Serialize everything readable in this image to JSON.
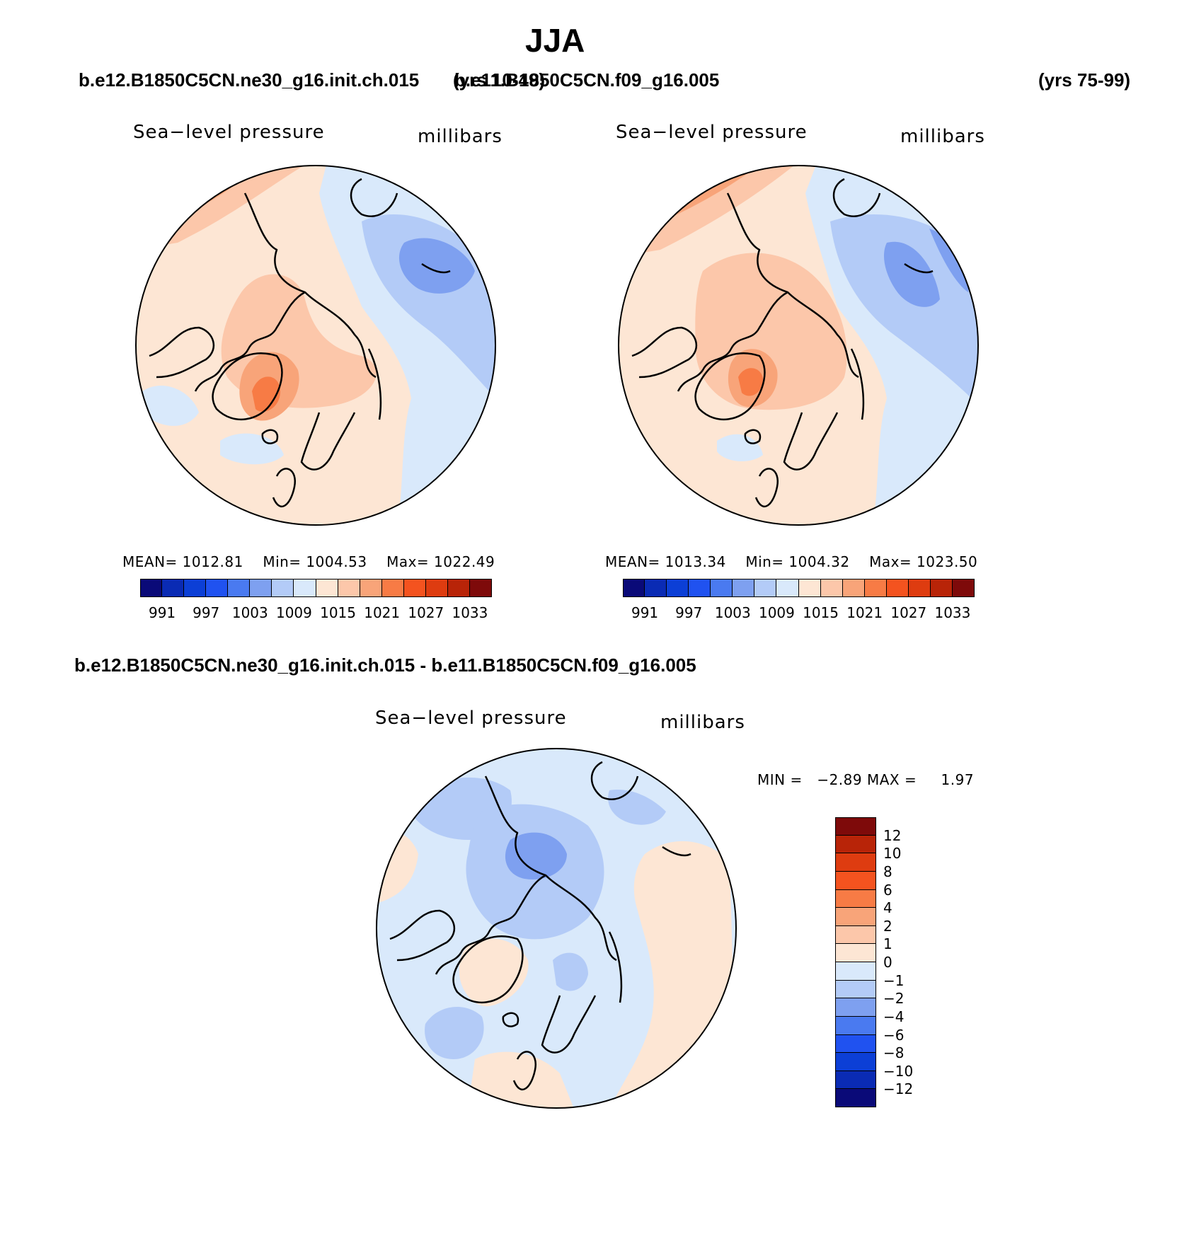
{
  "title": "JJA",
  "top_panels": [
    {
      "case": "b.e12.B1850C5CN.ne30_g16.init.ch.015",
      "years": "(yrs 10-49)",
      "variable": "Sea−level pressure",
      "units": "millibars",
      "stats": {
        "mean_label": "MEAN=",
        "mean": "1012.81",
        "min_label": "Min=",
        "min": "1004.53",
        "max_label": "Max=",
        "max": "1022.49"
      }
    },
    {
      "case": "b.e11.B1850C5CN.f09_g16.005",
      "years": "(yrs 75-99)",
      "variable": "Sea−level pressure",
      "units": "millibars",
      "stats": {
        "mean_label": "MEAN=",
        "mean": "1013.34",
        "min_label": "Min=",
        "min": "1004.32",
        "max_label": "Max=",
        "max": "1023.50"
      }
    }
  ],
  "abs_colorbar": {
    "colors": [
      "#0a0a78",
      "#0a2bb4",
      "#0c3fd6",
      "#2052f0",
      "#4a7af0",
      "#7ea0f0",
      "#b3cbf7",
      "#d9e9fb",
      "#fde6d4",
      "#fcc7aa",
      "#f8a479",
      "#f77b45",
      "#f4531f",
      "#de3c10",
      "#b82408",
      "#7e0a0a"
    ],
    "tick_labels": [
      "991",
      "997",
      "1003",
      "1009",
      "1015",
      "1021",
      "1027",
      "1033"
    ]
  },
  "diff_panel": {
    "title": "b.e12.B1850C5CN.ne30_g16.init.ch.015 - b.e11.B1850C5CN.f09_g16.005",
    "variable": "Sea−level pressure",
    "units": "millibars",
    "min_label": "MIN =",
    "min": "−2.89",
    "max_label": "MAX =",
    "max": "1.97"
  },
  "diff_colorbar": {
    "colors": [
      "#7e0a0a",
      "#b82408",
      "#de3c10",
      "#f4531f",
      "#f77b45",
      "#f8a479",
      "#fcc7aa",
      "#fde6d4",
      "#d9e9fb",
      "#b3cbf7",
      "#7ea0f0",
      "#4a7af0",
      "#2052f0",
      "#0c3fd6",
      "#0a2bb4",
      "#0a0a78"
    ],
    "tick_labels": [
      "12",
      "10",
      "8",
      "6",
      "4",
      "2",
      "1",
      "0",
      "−1",
      "−2",
      "−4",
      "−6",
      "−8",
      "−10",
      "−12"
    ]
  }
}
